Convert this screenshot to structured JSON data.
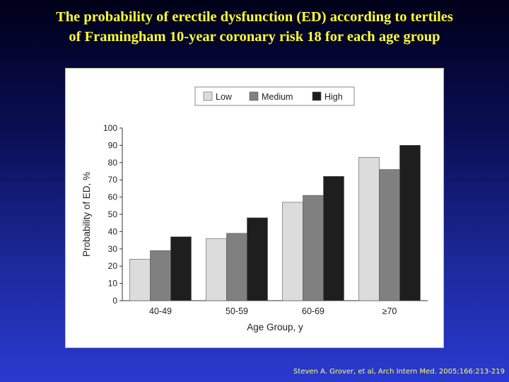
{
  "slide": {
    "title_line1": "The probability of erectile dysfunction (ED) according to tertiles",
    "title_line2": "of Framingham 10-year coronary risk 18 for each age group",
    "citation": "Steven A. Grover, et al, Arch Intern Med. 2005;166:213-219"
  },
  "colors": {
    "low": "#dcdcdc",
    "medium": "#808080",
    "high": "#1e1e1e",
    "title": "#ffff33"
  },
  "chart_data": {
    "type": "bar",
    "title": "",
    "xlabel": "Age Group, y",
    "ylabel": "Probability of ED, %",
    "ylim": [
      0,
      100
    ],
    "yticks": [
      0,
      10,
      20,
      30,
      40,
      50,
      60,
      70,
      80,
      90,
      100
    ],
    "categories": [
      "40-49",
      "50-59",
      "60-69",
      "≥70"
    ],
    "legend_position": "top-center",
    "series": [
      {
        "name": "Low",
        "values": [
          24,
          36,
          57,
          83
        ]
      },
      {
        "name": "Medium",
        "values": [
          29,
          39,
          61,
          76
        ]
      },
      {
        "name": "High",
        "values": [
          37,
          48,
          72,
          90
        ]
      }
    ]
  }
}
